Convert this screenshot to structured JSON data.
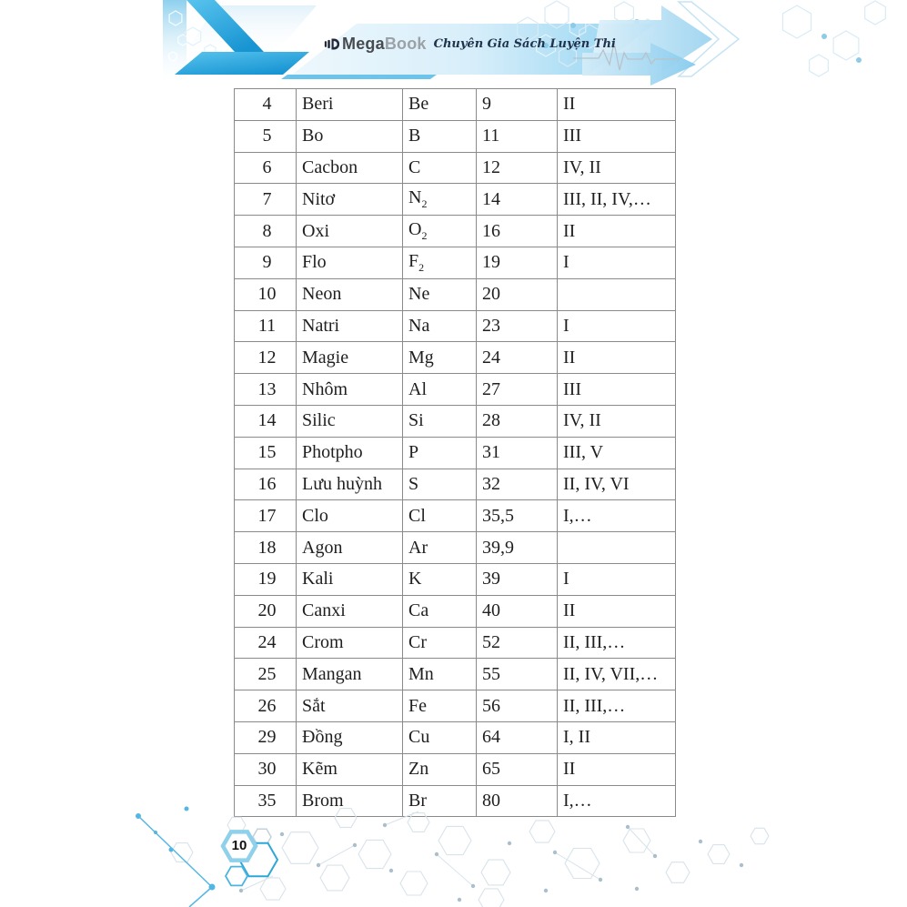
{
  "brand": {
    "icon": "megabook-logo-icon",
    "name_part1": "Mega",
    "name_part2": "Book",
    "tagline": "Chuyên Gia Sách Luyện Thi"
  },
  "footer": {
    "page_number": "10"
  },
  "table": {
    "columns": [
      "atomic-number",
      "element-name",
      "symbol",
      "atomic-mass",
      "valence"
    ],
    "rows": [
      {
        "number": "4",
        "name": "Beri",
        "symbol": "Be",
        "symbol_sub": "",
        "mass": "9",
        "valence": "II"
      },
      {
        "number": "5",
        "name": "Bo",
        "symbol": "B",
        "symbol_sub": "",
        "mass": "11",
        "valence": "III"
      },
      {
        "number": "6",
        "name": "Cacbon",
        "symbol": "C",
        "symbol_sub": "",
        "mass": "12",
        "valence": "IV, II"
      },
      {
        "number": "7",
        "name": "Nitơ",
        "symbol": "N",
        "symbol_sub": "2",
        "mass": "14",
        "valence": "III, II, IV,…"
      },
      {
        "number": "8",
        "name": "Oxi",
        "symbol": "O",
        "symbol_sub": "2",
        "mass": "16",
        "valence": "II"
      },
      {
        "number": "9",
        "name": "Flo",
        "symbol": "F",
        "symbol_sub": "2",
        "mass": "19",
        "valence": "I"
      },
      {
        "number": "10",
        "name": "Neon",
        "symbol": "Ne",
        "symbol_sub": "",
        "mass": "20",
        "valence": ""
      },
      {
        "number": "11",
        "name": "Natri",
        "symbol": "Na",
        "symbol_sub": "",
        "mass": "23",
        "valence": "I"
      },
      {
        "number": "12",
        "name": "Magie",
        "symbol": "Mg",
        "symbol_sub": "",
        "mass": "24",
        "valence": "II"
      },
      {
        "number": "13",
        "name": "Nhôm",
        "symbol": "Al",
        "symbol_sub": "",
        "mass": "27",
        "valence": "III"
      },
      {
        "number": "14",
        "name": "Silic",
        "symbol": "Si",
        "symbol_sub": "",
        "mass": "28",
        "valence": "IV, II"
      },
      {
        "number": "15",
        "name": "Photpho",
        "symbol": "P",
        "symbol_sub": "",
        "mass": "31",
        "valence": "III, V"
      },
      {
        "number": "16",
        "name": "Lưu huỳnh",
        "symbol": "S",
        "symbol_sub": "",
        "mass": "32",
        "valence": "II, IV, VI"
      },
      {
        "number": "17",
        "name": "Clo",
        "symbol": "Cl",
        "symbol_sub": "",
        "mass": "35,5",
        "valence": "I,…"
      },
      {
        "number": "18",
        "name": "Agon",
        "symbol": "Ar",
        "symbol_sub": "",
        "mass": "39,9",
        "valence": ""
      },
      {
        "number": "19",
        "name": "Kali",
        "symbol": "K",
        "symbol_sub": "",
        "mass": "39",
        "valence": "I"
      },
      {
        "number": "20",
        "name": "Canxi",
        "symbol": "Ca",
        "symbol_sub": "",
        "mass": "40",
        "valence": "II"
      },
      {
        "number": "24",
        "name": "Crom",
        "symbol": "Cr",
        "symbol_sub": "",
        "mass": "52",
        "valence": "II, III,…"
      },
      {
        "number": "25",
        "name": "Mangan",
        "symbol": "Mn",
        "symbol_sub": "",
        "mass": "55",
        "valence": "II, IV, VII,…"
      },
      {
        "number": "26",
        "name": "Sắt",
        "symbol": "Fe",
        "symbol_sub": "",
        "mass": "56",
        "valence": "II, III,…"
      },
      {
        "number": "29",
        "name": "Đồng",
        "symbol": "Cu",
        "symbol_sub": "",
        "mass": "64",
        "valence": "I, II"
      },
      {
        "number": "30",
        "name": "Kẽm",
        "symbol": "Zn",
        "symbol_sub": "",
        "mass": "65",
        "valence": "II"
      },
      {
        "number": "35",
        "name": "Brom",
        "symbol": "Br",
        "symbol_sub": "",
        "mass": "80",
        "valence": "I,…"
      }
    ]
  },
  "colors": {
    "accent_cyan": "#29abe2",
    "ribbon_cyan_dark": "#1794d2",
    "band_light_blue": "#cfe9f6",
    "logo_mega_gray": "#474b50",
    "logo_book_gray": "#9ba1a7",
    "tagline_navy": "#20344d",
    "table_border_gray": "#8a8a8a",
    "text_black": "#1f1f1f",
    "hex_faint_gray": "#d8e3ea",
    "hex_bright_cyan": "#2da7d7"
  }
}
